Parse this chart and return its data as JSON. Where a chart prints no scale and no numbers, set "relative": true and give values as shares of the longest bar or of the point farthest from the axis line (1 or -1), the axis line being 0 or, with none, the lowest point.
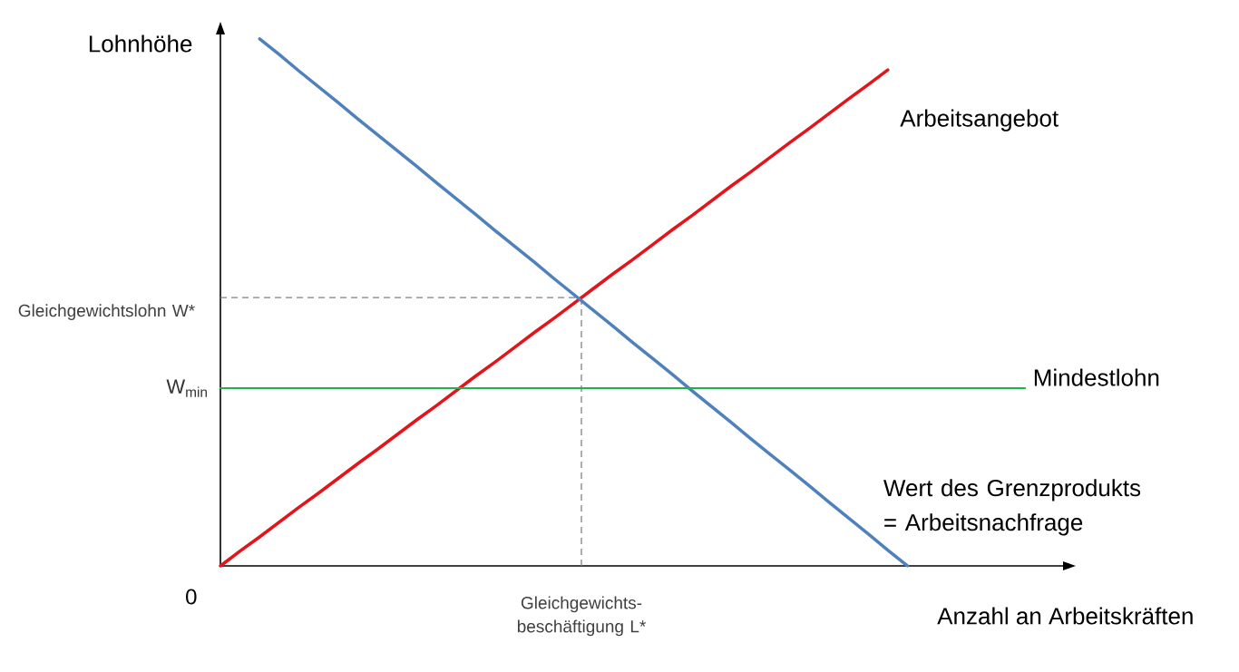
{
  "chart_data": {
    "type": "line",
    "relative": true,
    "xlabel": "Anzahl an Arbeitskräften",
    "ylabel": "Lohnhöhe",
    "categories": [
      null,
      null,
      null,
      null,
      null,
      null,
      null,
      null,
      null,
      null,
      null,
      null,
      null,
      null,
      null,
      null,
      null,
      null,
      null,
      null,
      null,
      null,
      null,
      null,
      null,
      null,
      null,
      null,
      null,
      null,
      null,
      null,
      null,
      null,
      null,
      null,
      null,
      null,
      null,
      null,
      null,
      null
    ],
    "series": [
      {
        "name": "Arbeitsangebot",
        "color": "#e3151a",
        "values": [
          0,
          0.028,
          0.055,
          0.083,
          0.111,
          0.138,
          0.166,
          0.194,
          0.221,
          0.249,
          0.277,
          0.304,
          0.332,
          0.36,
          0.387,
          0.415,
          0.443,
          0.47,
          0.498,
          0.526,
          0.554,
          0.581,
          0.609,
          0.637,
          0.664,
          0.692,
          0.72,
          0.747,
          0.775,
          0.803,
          0.83,
          0.858,
          0.886,
          0.913,
          0.941,
          null,
          null,
          null,
          null,
          null,
          null,
          null
        ]
      },
      {
        "name": "Wert des Grenzprodukts = Arbeitsnachfrage",
        "color": "#4f81bd",
        "values": [
          null,
          null,
          1.0,
          0.97,
          0.939,
          0.909,
          0.879,
          0.848,
          0.818,
          0.788,
          0.758,
          0.727,
          0.697,
          0.667,
          0.636,
          0.606,
          0.576,
          0.545,
          0.515,
          0.485,
          0.455,
          0.424,
          0.394,
          0.364,
          0.333,
          0.303,
          0.273,
          0.242,
          0.212,
          0.182,
          0.152,
          0.121,
          0.091,
          0.061,
          0.03,
          0,
          null,
          null,
          null,
          null,
          null,
          null
        ]
      },
      {
        "name": "Mindestlohn",
        "color": "#22b14c",
        "values": [
          0.337,
          0.337,
          0.337,
          0.337,
          0.337,
          0.337,
          0.337,
          0.337,
          0.337,
          0.337,
          0.337,
          0.337,
          0.337,
          0.337,
          0.337,
          0.337,
          0.337,
          0.337,
          0.337,
          0.337,
          0.337,
          0.337,
          0.337,
          0.337,
          0.337,
          0.337,
          0.337,
          0.337,
          0.337,
          0.337,
          0.337,
          0.337,
          0.337,
          0.337,
          0.337,
          0.337,
          0.337,
          0.337,
          0.337,
          0.337,
          0.337,
          0.337
        ]
      }
    ],
    "ref_lines": [
      {
        "axis": "y",
        "value": 0.509,
        "label": "Gleichgewichtslohn W*",
        "color": "#808080",
        "line_style": "dashed"
      }
    ],
    "annotations": [
      "0",
      "W$_{min}$",
      "Gleichgewichts- beschäftigung L*"
    ]
  }
}
